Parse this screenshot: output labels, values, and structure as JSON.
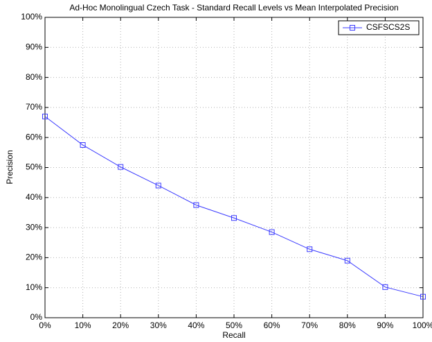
{
  "chart_data": {
    "type": "line",
    "title": "Ad-Hoc Monolingual Czech Task - Standard Recall Levels vs Mean Interpolated Precision",
    "x_label": "Recall",
    "y_label": "Precision",
    "x": [
      0,
      10,
      20,
      30,
      40,
      50,
      60,
      70,
      80,
      90,
      100
    ],
    "series": [
      {
        "name": "CSFSCS2S",
        "color": "#3a3aff",
        "marker": "square",
        "values": [
          67,
          57.5,
          50.2,
          44,
          37.5,
          33.2,
          28.5,
          22.8,
          19,
          10.2,
          7
        ]
      }
    ],
    "xlim": [
      0,
      100
    ],
    "xticks": [
      {
        "value": 0,
        "label": "0%"
      },
      {
        "value": 10,
        "label": "10%"
      },
      {
        "value": 20,
        "label": "20%"
      },
      {
        "value": 30,
        "label": "30%"
      },
      {
        "value": 40,
        "label": "40%"
      },
      {
        "value": 50,
        "label": "50%"
      },
      {
        "value": 60,
        "label": "60%"
      },
      {
        "value": 70,
        "label": "70%"
      },
      {
        "value": 80,
        "label": "80%"
      },
      {
        "value": 90,
        "label": "90%"
      },
      {
        "value": 100,
        "label": "100%"
      }
    ],
    "ylim": [
      0,
      100
    ],
    "yticks": [
      {
        "value": 0,
        "label": "0%"
      },
      {
        "value": 10,
        "label": "10%"
      },
      {
        "value": 20,
        "label": "20%"
      },
      {
        "value": 30,
        "label": "30%"
      },
      {
        "value": 40,
        "label": "40%"
      },
      {
        "value": 50,
        "label": "50%"
      },
      {
        "value": 60,
        "label": "60%"
      },
      {
        "value": 70,
        "label": "70%"
      },
      {
        "value": 80,
        "label": "80%"
      },
      {
        "value": 90,
        "label": "90%"
      },
      {
        "value": 100,
        "label": "100%"
      }
    ],
    "grid": true,
    "legend": "top-right"
  }
}
